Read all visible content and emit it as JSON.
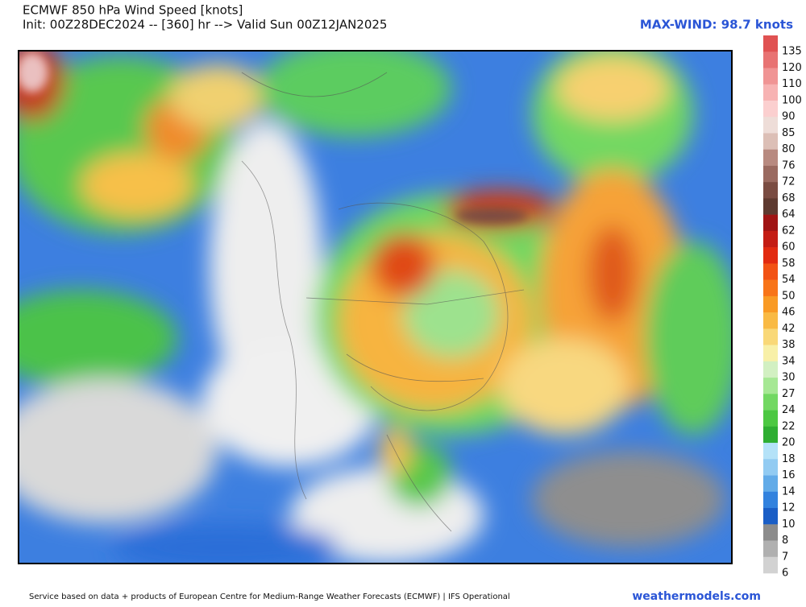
{
  "header": {
    "title": "ECMWF 850 hPa Wind Speed [knots]",
    "subtitle": "Init: 00Z28DEC2024 -- [360] hr --> Valid Sun 00Z12JAN2025",
    "max_wind": "MAX-WIND: 98.7 knots"
  },
  "colorbar": {
    "labels": [
      135,
      120,
      110,
      100,
      90,
      85,
      80,
      76,
      72,
      68,
      64,
      62,
      60,
      58,
      54,
      50,
      46,
      42,
      38,
      34,
      30,
      27,
      24,
      22,
      20,
      18,
      16,
      14,
      12,
      10,
      8,
      7,
      6
    ],
    "colors": [
      "#e05252",
      "#e87373",
      "#f09494",
      "#f7b3b3",
      "#fbcfcf",
      "#eeddd8",
      "#dcbfb6",
      "#b88a80",
      "#9a6a60",
      "#7a4c42",
      "#5e3a30",
      "#a01414",
      "#c41c14",
      "#e22a10",
      "#f25214",
      "#f87418",
      "#f99a24",
      "#f9ba44",
      "#f9d878",
      "#f8f0a8",
      "#d2f0c2",
      "#a6e894",
      "#72d862",
      "#4cc842",
      "#2eae32",
      "#b4e2f8",
      "#92cbf2",
      "#62abe8",
      "#3282de",
      "#1a5ec6",
      "#8c8c8c",
      "#b0b0b0",
      "#d2d2d2"
    ]
  },
  "footer": {
    "credit": "Service based on data + products of European Centre for Medium-Range Weather Forecasts (ECMWF) | IFS Operational",
    "site": "weathermodels.com"
  }
}
